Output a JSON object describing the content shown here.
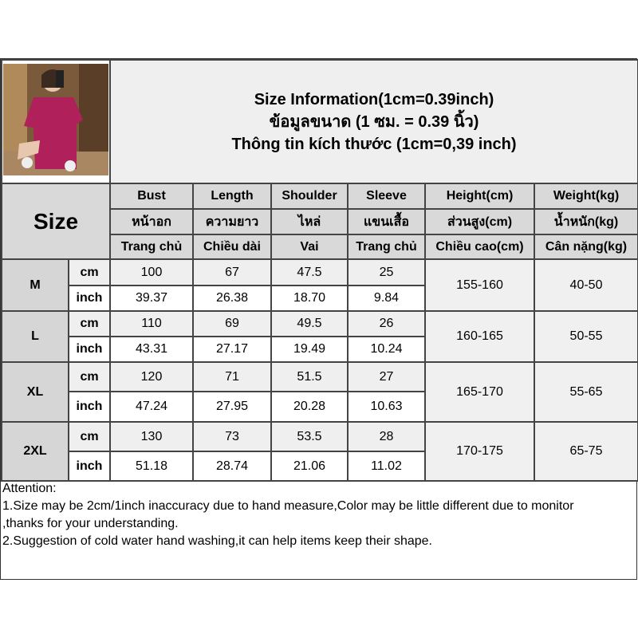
{
  "title_lines": [
    "Size Information(1cm=0.39inch)",
    "ข้อมูลขนาด (1 ซม. = 0.39 นิ้ว)",
    "Thông tin kích thước (1cm=0,39 inch)"
  ],
  "size_header": "Size",
  "columns": [
    {
      "en": "Bust",
      "th": "หน้าอก",
      "vi": "Trang chủ"
    },
    {
      "en": "Length",
      "th": "ความยาว",
      "vi": "Chiều dài"
    },
    {
      "en": "Shoulder",
      "th": "ไหล่",
      "vi": "Vai"
    },
    {
      "en": "Sleeve",
      "th": "แขนเสื้อ",
      "vi": "Trang chủ"
    },
    {
      "en": "Height(cm)",
      "th": "ส่วนสูง(cm)",
      "vi": "Chiều cao(cm)"
    },
    {
      "en": "Weight(kg)",
      "th": "น้ำหนัก(kg)",
      "vi": "Cân nặng(kg)"
    }
  ],
  "unit_cm": "cm",
  "unit_inch": "inch",
  "rows": [
    {
      "size": "M",
      "cm": [
        "100",
        "67",
        "47.5",
        "25"
      ],
      "inch": [
        "39.37",
        "26.38",
        "18.70",
        "9.84"
      ],
      "height": "155-160",
      "weight": "40-50"
    },
    {
      "size": "L",
      "cm": [
        "110",
        "69",
        "49.5",
        "26"
      ],
      "inch": [
        "43.31",
        "27.17",
        "19.49",
        "10.24"
      ],
      "height": "160-165",
      "weight": "50-55"
    },
    {
      "size": "XL",
      "cm": [
        "120",
        "71",
        "51.5",
        "27"
      ],
      "inch": [
        "47.24",
        "27.95",
        "20.28",
        "10.63"
      ],
      "height": "165-170",
      "weight": "55-65"
    },
    {
      "size": "2XL",
      "cm": [
        "130",
        "73",
        "53.5",
        "28"
      ],
      "inch": [
        "51.18",
        "28.74",
        "21.06",
        "11.02"
      ],
      "height": "170-175",
      "weight": "65-75"
    }
  ],
  "attention": {
    "heading": "Attention:",
    "line1": "1.Size may be 2cm/1inch inaccuracy due to hand measure,Color may be little different due to monitor",
    "line1b": ",thanks for your understanding.",
    "line2": "2.Suggestion of cold water hand washing,it can help items keep their shape."
  },
  "colors": {
    "shirt": "#b0205a",
    "header_bg": "#d9d9d9",
    "title_bg": "#efefef"
  }
}
